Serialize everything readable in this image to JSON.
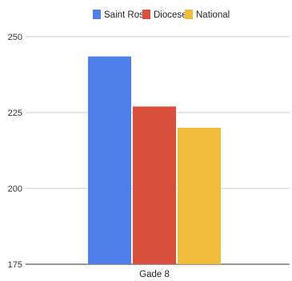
{
  "chart_data": {
    "type": "bar",
    "categories": [
      "Gade 8"
    ],
    "series": [
      {
        "name": "Saint Rose",
        "values": [
          243.5
        ],
        "color": "#4f7fe8"
      },
      {
        "name": "Diocese",
        "values": [
          227
        ],
        "color": "#d9503c"
      },
      {
        "name": "National",
        "values": [
          220
        ],
        "color": "#f0bd3c"
      }
    ],
    "ylim": [
      175,
      250
    ],
    "yticks": [
      175,
      200,
      225,
      250
    ],
    "ytick_labels": [
      "175",
      "200",
      "225",
      "250"
    ],
    "grid": true,
    "legend_position": "top"
  }
}
